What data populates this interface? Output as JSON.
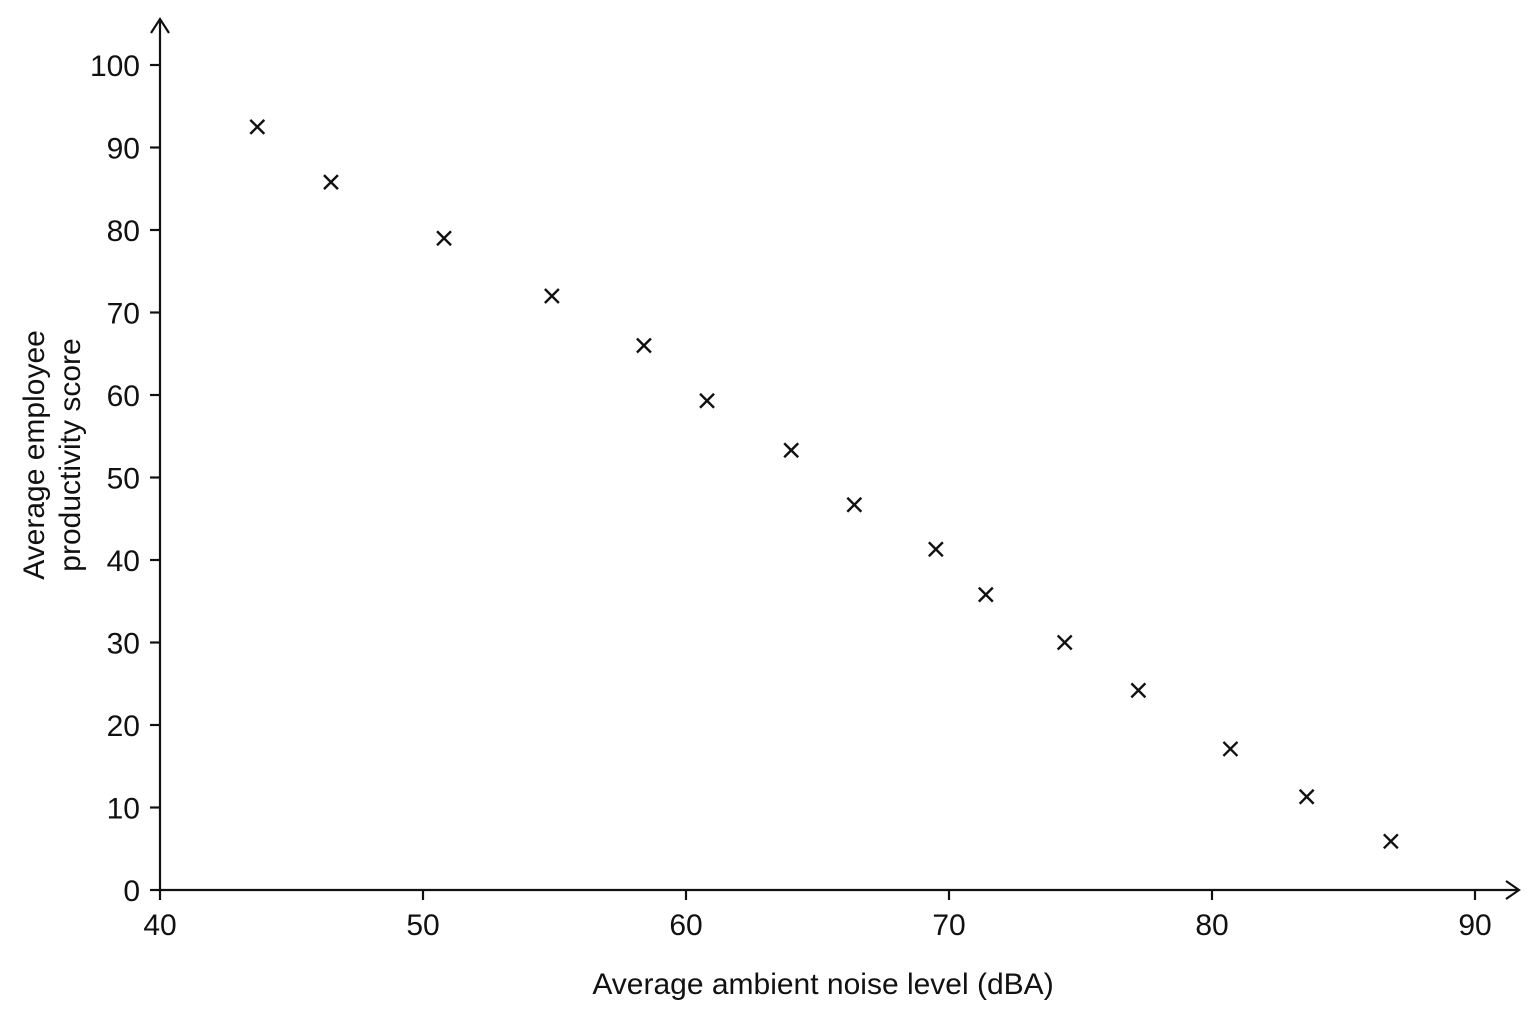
{
  "chart_data": {
    "type": "scatter",
    "title": "",
    "xlabel": "Average ambient noise level (dBA)",
    "ylabel_lines": [
      "Average employee",
      "productivity score"
    ],
    "xlim": [
      40,
      90
    ],
    "ylim": [
      0,
      100
    ],
    "x_ticks": [
      40,
      50,
      60,
      70,
      80,
      90
    ],
    "y_ticks": [
      0,
      10,
      20,
      30,
      40,
      50,
      60,
      70,
      80,
      90,
      100
    ],
    "grid": false,
    "legend": "none",
    "marker": "x",
    "marker_color": "#111111",
    "series": [
      {
        "points": [
          {
            "x": 43.7,
            "y": 92.5
          },
          {
            "x": 46.5,
            "y": 85.8
          },
          {
            "x": 50.8,
            "y": 79.0
          },
          {
            "x": 54.9,
            "y": 72.0
          },
          {
            "x": 58.4,
            "y": 66.0
          },
          {
            "x": 60.8,
            "y": 59.3
          },
          {
            "x": 64.0,
            "y": 53.3
          },
          {
            "x": 66.4,
            "y": 46.7
          },
          {
            "x": 69.5,
            "y": 41.3
          },
          {
            "x": 71.4,
            "y": 35.8
          },
          {
            "x": 74.4,
            "y": 30.0
          },
          {
            "x": 77.2,
            "y": 24.2
          },
          {
            "x": 80.7,
            "y": 17.1
          },
          {
            "x": 83.6,
            "y": 11.3
          },
          {
            "x": 86.8,
            "y": 5.9
          }
        ]
      }
    ]
  }
}
